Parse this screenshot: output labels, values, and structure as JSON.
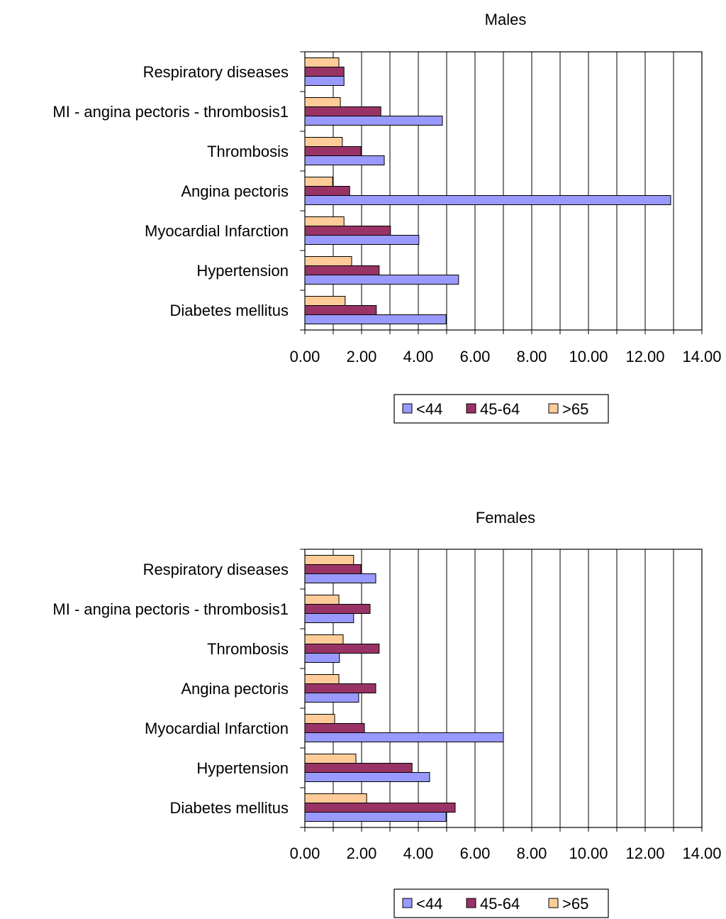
{
  "chart_data": [
    {
      "type": "bar",
      "orientation": "horizontal",
      "title": "Males",
      "categories": [
        "Diabetes mellitus",
        "Hypertension",
        "Myocardial Infarction",
        "Angina pectoris",
        "Thrombosis",
        "MI - angina pectoris - thrombosis1",
        "Respiratory diseases"
      ],
      "series": [
        {
          "name": "<44",
          "values": [
            4.98,
            5.42,
            4.02,
            12.9,
            2.8,
            4.85,
            1.38
          ]
        },
        {
          "name": "45-64",
          "values": [
            2.52,
            2.62,
            3.02,
            1.58,
            1.98,
            2.68,
            1.38
          ]
        },
        {
          "name": ">65",
          "values": [
            1.42,
            1.65,
            1.38,
            0.98,
            1.32,
            1.25,
            1.2
          ]
        }
      ],
      "xlim": [
        0,
        14
      ],
      "x_ticks": [
        "0.00",
        "2.00",
        "4.00",
        "6.00",
        "8.00",
        "10.00",
        "12.00",
        "14.00"
      ],
      "grid": true,
      "legend": "bottom",
      "colors": {
        "<44": "#9999ff",
        "45-64": "#993366",
        ">65": "#ffcc99"
      }
    },
    {
      "type": "bar",
      "orientation": "horizontal",
      "title": "Females",
      "categories": [
        "Diabetes mellitus",
        "Hypertension",
        "Myocardial Infarction",
        "Angina pectoris",
        "Thrombosis",
        "MI - angina pectoris - thrombosis1",
        "Respiratory diseases"
      ],
      "series": [
        {
          "name": "<44",
          "values": [
            4.98,
            4.4,
            7.0,
            1.9,
            1.22,
            1.72,
            2.5
          ]
        },
        {
          "name": "45-64",
          "values": [
            5.3,
            3.78,
            2.1,
            2.5,
            2.62,
            2.3,
            1.98
          ]
        },
        {
          "name": ">65",
          "values": [
            2.18,
            1.8,
            1.05,
            1.2,
            1.35,
            1.2,
            1.72
          ]
        }
      ],
      "xlim": [
        0,
        14
      ],
      "x_ticks": [
        "0.00",
        "2.00",
        "4.00",
        "6.00",
        "8.00",
        "10.00",
        "12.00",
        "14.00"
      ],
      "grid": true,
      "legend": "bottom",
      "colors": {
        "<44": "#9999ff",
        "45-64": "#993366",
        ">65": "#ffcc99"
      }
    }
  ]
}
